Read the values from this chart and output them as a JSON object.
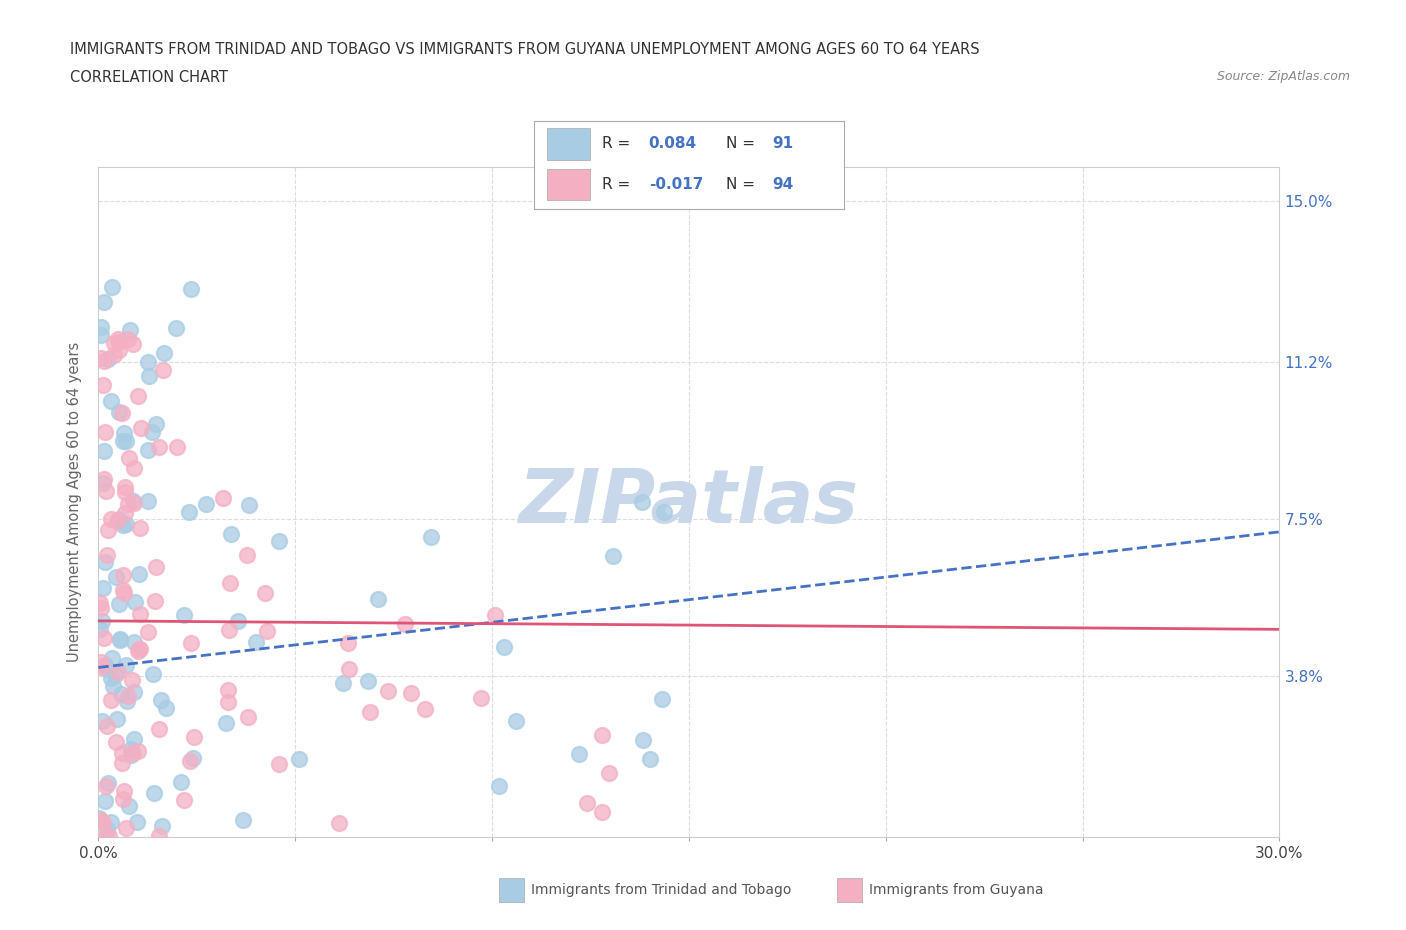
{
  "title_line1": "IMMIGRANTS FROM TRINIDAD AND TOBAGO VS IMMIGRANTS FROM GUYANA UNEMPLOYMENT AMONG AGES 60 TO 64 YEARS",
  "title_line2": "CORRELATION CHART",
  "source_text": "Source: ZipAtlas.com",
  "ylabel": "Unemployment Among Ages 60 to 64 years",
  "xlim": [
    0.0,
    0.3
  ],
  "ylim": [
    0.0,
    0.158
  ],
  "ytick_positions": [
    0.038,
    0.075,
    0.112,
    0.15
  ],
  "ytick_labels": [
    "3.8%",
    "7.5%",
    "11.2%",
    "15.0%"
  ],
  "color_tt": "#a8cce4",
  "color_gy": "#f4afc3",
  "trend_tt_color": "#4472c4",
  "trend_gy_color": "#e05575",
  "watermark": "ZIPatlas",
  "watermark_color": "#c8d8ea",
  "background_color": "#ffffff",
  "tt_trend_x0": 0.0,
  "tt_trend_y0": 0.04,
  "tt_trend_x1": 0.3,
  "tt_trend_y1": 0.072,
  "gy_trend_x0": 0.0,
  "gy_trend_y0": 0.051,
  "gy_trend_x1": 0.3,
  "gy_trend_y1": 0.049
}
